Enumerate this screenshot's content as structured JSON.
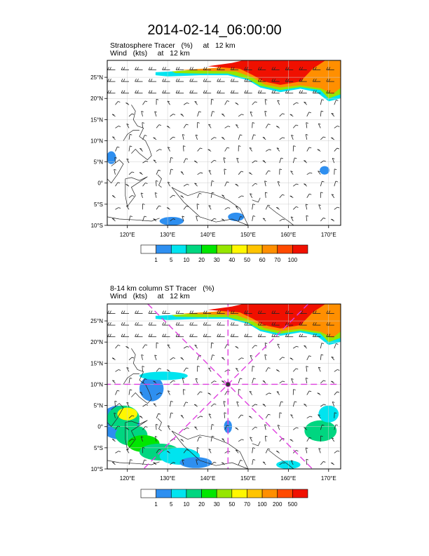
{
  "title": "2014-02-14_06:00:00",
  "chart_data": [
    {
      "type": "heatmap",
      "title_lines": [
        "Stratosphere Tracer   (%)     at   12 km",
        "Wind   (kts)     at   12 km"
      ],
      "xlim": [
        115,
        173
      ],
      "ylim": [
        -10,
        29
      ],
      "x_ticks": [
        120,
        130,
        140,
        150,
        160,
        170
      ],
      "x_tick_labels": [
        "120°E",
        "130°E",
        "140°E",
        "150°E",
        "160°E",
        "170°E"
      ],
      "y_ticks": [
        -10,
        -5,
        0,
        5,
        10,
        15,
        20,
        25
      ],
      "y_tick_labels": [
        "10°S",
        "5°S",
        "0°",
        "5°N",
        "10°N",
        "15°N",
        "20°N",
        "25°N"
      ],
      "colorbar_levels": [
        "1",
        "5",
        "10",
        "20",
        "30",
        "40",
        "50",
        "60",
        "70",
        "100"
      ],
      "colorbar_colors": [
        "#ffffff",
        "#2e8ff0",
        "#00e4ef",
        "#00d680",
        "#00e600",
        "#96e600",
        "#fff700",
        "#ffc400",
        "#ff8f00",
        "#ff4a00",
        "#f01000"
      ],
      "tracer_region": "north-east",
      "grid": true
    },
    {
      "type": "heatmap",
      "title_lines": [
        "8-14 km column ST Tracer   (%)",
        "Wind   (kts)     at   12 km"
      ],
      "xlim": [
        115,
        173
      ],
      "ylim": [
        -10,
        29
      ],
      "x_ticks": [
        120,
        130,
        140,
        150,
        160,
        170
      ],
      "x_tick_labels": [
        "120°E",
        "130°E",
        "140°E",
        "150°E",
        "160°E",
        "170°E"
      ],
      "y_ticks": [
        -10,
        -5,
        0,
        5,
        10,
        15,
        20,
        25
      ],
      "y_tick_labels": [
        "10°S",
        "5°S",
        "0°",
        "5°N",
        "10°N",
        "15°N",
        "20°N",
        "25°N"
      ],
      "colorbar_levels": [
        "1",
        "5",
        "10",
        "20",
        "30",
        "50",
        "70",
        "100",
        "200",
        "500"
      ],
      "colorbar_colors": [
        "#ffffff",
        "#2e8ff0",
        "#00e4ef",
        "#00d680",
        "#00e600",
        "#96e600",
        "#fff700",
        "#ffc400",
        "#ff8f00",
        "#ff4a00",
        "#f01000"
      ],
      "cross_section_center": [
        145,
        10
      ],
      "cross_section_color": "#e040e0",
      "grid": true
    }
  ]
}
